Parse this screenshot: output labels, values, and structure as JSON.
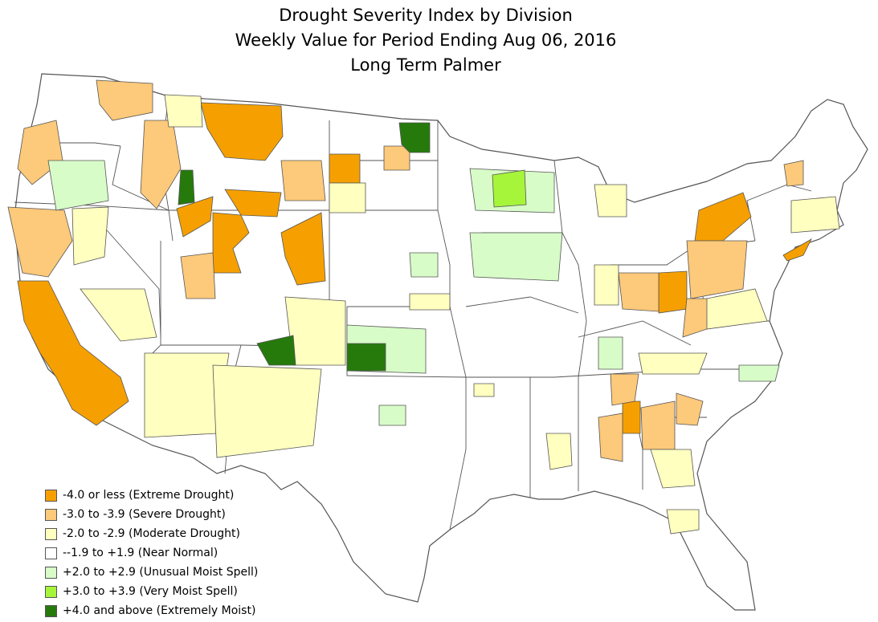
{
  "title": {
    "line1": "Drought Severity Index by Division",
    "line2": "Weekly Value for Period Ending Aug 06, 2016",
    "line3": "Long Term Palmer"
  },
  "colors": {
    "extreme_drought": "#f5a000",
    "severe_drought": "#fdc97a",
    "moderate_drought": "#ffffc0",
    "near_normal": "#ffffff",
    "unusual_moist": "#d8fcc8",
    "very_moist": "#a6f53a",
    "extremely_moist": "#267a0c",
    "boundary": "#555555"
  },
  "legend": [
    {
      "label": "-4.0 or less (Extreme Drought)",
      "color": "#f5a000"
    },
    {
      "label": "-3.0 to -3.9 (Severe Drought)",
      "color": "#fdc97a"
    },
    {
      "label": "-2.0 to -2.9 (Moderate Drought)",
      "color": "#ffffc0"
    },
    {
      "label": "--1.9 to +1.9 (Near Normal)",
      "color": "#ffffff"
    },
    {
      "label": "+2.0 to +2.9 (Unusual Moist Spell)",
      "color": "#d8fcc8"
    },
    {
      "label": "+3.0 to +3.9 (Very Moist Spell)",
      "color": "#a6f53a"
    },
    {
      "label": "+4.0 and above (Extremely Moist)",
      "color": "#267a0c"
    }
  ]
}
